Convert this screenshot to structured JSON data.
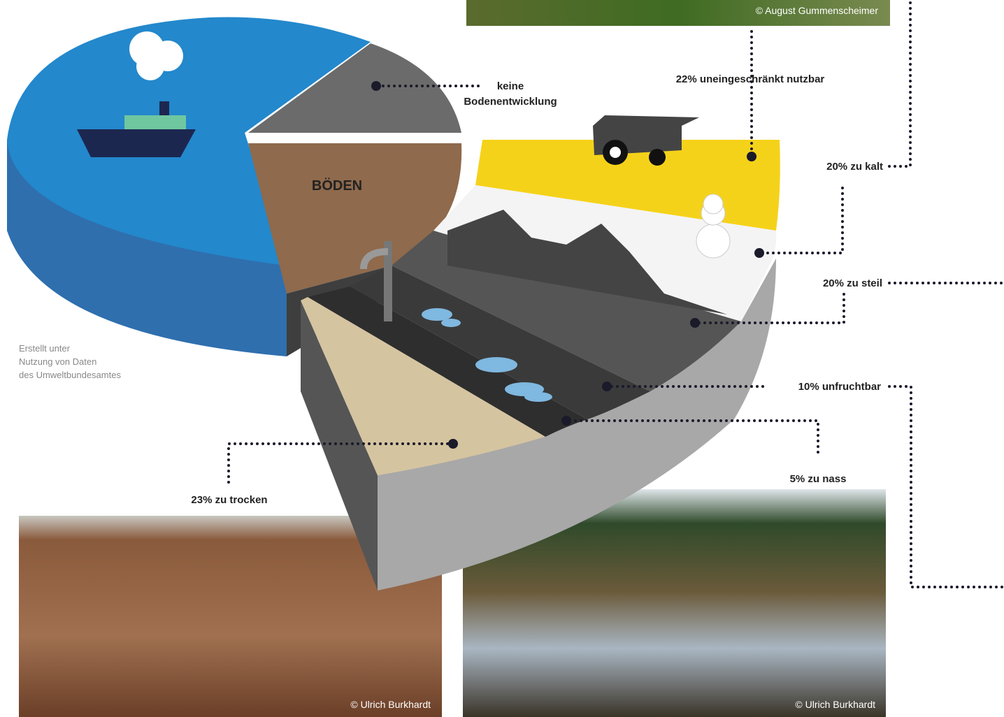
{
  "pie": {
    "center_label": "BÖDEN",
    "top_label": [
      "keine",
      "Bodenentwicklung"
    ]
  },
  "segments": [
    "22% uneingeschränkt nutzbar",
    "20% zu kalt",
    "20% zu steil",
    "10% unfruchtbar",
    "5% zu nass",
    "23% zu trocken"
  ],
  "source_note": [
    "Erstellt unter",
    "Nutzung von Daten",
    "des Umweltbundesamtes"
  ],
  "photo_credits": [
    "© August Gummenscheimer",
    "© Ulrich Burkhardt",
    "© Ulrich Burkhardt"
  ]
}
